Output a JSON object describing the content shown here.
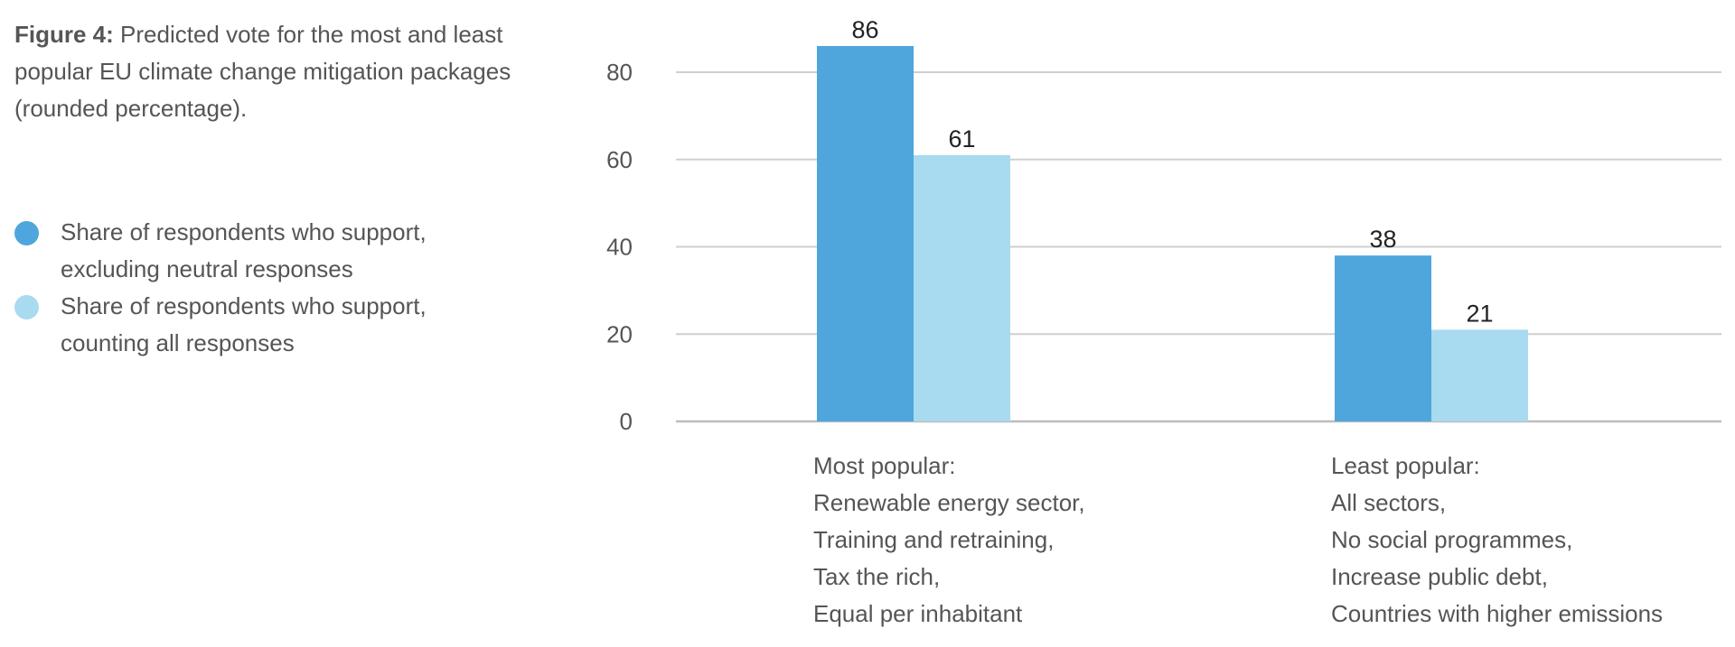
{
  "caption": {
    "label": "Figure 4:",
    "text": " Predicted vote for the most and least popular EU climate change mitigation packages (rounded percentage)."
  },
  "legend": [
    {
      "lines": [
        "Share of respondents who support,",
        "excluding neutral responses"
      ],
      "color": "#4ea6dc"
    },
    {
      "lines": [
        "Share of respondents who support,",
        "counting all responses"
      ],
      "color": "#a8daf0"
    }
  ],
  "chart_data": {
    "type": "bar",
    "categories": [
      [
        "Most popular:",
        "Renewable energy sector,",
        "Training and retraining,",
        "Tax the rich,",
        "Equal per inhabitant"
      ],
      [
        "Least popular:",
        "All sectors,",
        "No social programmes,",
        "Increase public debt,",
        "Countries with higher emissions"
      ]
    ],
    "series": [
      {
        "values": [
          86,
          38
        ],
        "color": "#4ea6dc"
      },
      {
        "values": [
          61,
          21
        ],
        "color": "#a8daf0"
      }
    ],
    "yticks": [
      0,
      20,
      40,
      60,
      80
    ],
    "ylim": [
      0,
      90
    ],
    "grid": true
  }
}
